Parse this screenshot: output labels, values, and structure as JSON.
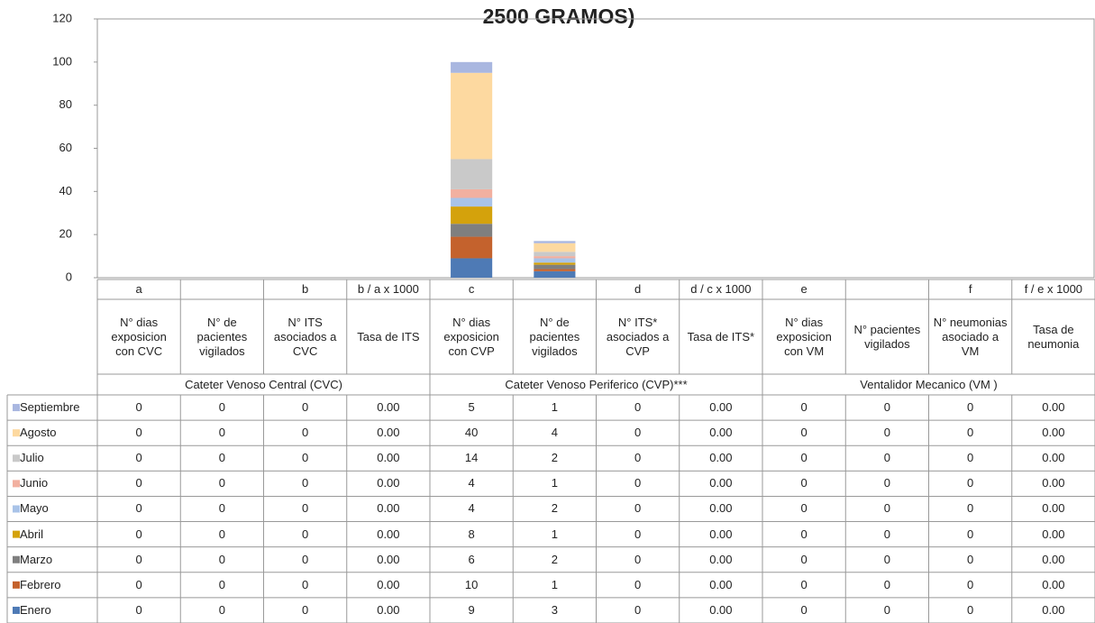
{
  "chart_data": {
    "type": "bar",
    "stacked": true,
    "title": "2500 GRAMOS)",
    "category_codes": [
      "a",
      null,
      "b",
      "b / a x 1000",
      "c",
      null,
      "d",
      "d / c x 1000",
      "e",
      null,
      "f",
      "f / e x 1000"
    ],
    "categories": [
      "N° dias exposicion con CVC",
      "N° de pacientes vigilados",
      "N° ITS asociados a CVC",
      "Tasa de ITS",
      "N° dias exposicion con CVP",
      "N° de pacientes vigilados",
      "N° ITS* asociados a CVP",
      "Tasa de ITS*",
      "N° dias exposicion con VM",
      "N° pacientes vigilados",
      "N° neumonias asociado a VM",
      "Tasa de neumonia"
    ],
    "groups": [
      "Cateter Venoso  Central (CVC)",
      "Cateter Venoso Periferico (CVP)***",
      "Ventalidor Mecanico (VM )"
    ],
    "ylim": [
      0,
      120
    ],
    "yticks": [
      0,
      20,
      40,
      60,
      80,
      100,
      120
    ],
    "grid": false,
    "series": [
      {
        "name": "Enero",
        "color": "#4e7ab5",
        "values": [
          0,
          0,
          0,
          0,
          9,
          3,
          0,
          0,
          0,
          0,
          0,
          0
        ],
        "value_labels": [
          "0",
          "0",
          "0",
          "0.00",
          "9",
          "3",
          "0",
          "0.00",
          "0",
          "0",
          "0",
          "0.00"
        ]
      },
      {
        "name": "Febrero",
        "color": "#c4622d",
        "values": [
          0,
          0,
          0,
          0,
          10,
          1,
          0,
          0,
          0,
          0,
          0,
          0
        ],
        "value_labels": [
          "0",
          "0",
          "0",
          "0.00",
          "10",
          "1",
          "0",
          "0.00",
          "0",
          "0",
          "0",
          "0.00"
        ]
      },
      {
        "name": "Marzo",
        "color": "#7f7f7f",
        "values": [
          0,
          0,
          0,
          0,
          6,
          2,
          0,
          0,
          0,
          0,
          0,
          0
        ],
        "value_labels": [
          "0",
          "0",
          "0",
          "0.00",
          "6",
          "2",
          "0",
          "0.00",
          "0",
          "0",
          "0",
          "0.00"
        ]
      },
      {
        "name": "Abril",
        "color": "#d4a20c",
        "values": [
          0,
          0,
          0,
          0,
          8,
          1,
          0,
          0,
          0,
          0,
          0,
          0
        ],
        "value_labels": [
          "0",
          "0",
          "0",
          "0.00",
          "8",
          "1",
          "0",
          "0.00",
          "0",
          "0",
          "0",
          "0.00"
        ]
      },
      {
        "name": "Mayo",
        "color": "#a9c3e8",
        "values": [
          0,
          0,
          0,
          0,
          4,
          2,
          0,
          0,
          0,
          0,
          0,
          0
        ],
        "value_labels": [
          "0",
          "0",
          "0",
          "0.00",
          "4",
          "2",
          "0",
          "0.00",
          "0",
          "0",
          "0",
          "0.00"
        ]
      },
      {
        "name": "Junio",
        "color": "#f2b0a0",
        "values": [
          0,
          0,
          0,
          0,
          4,
          1,
          0,
          0,
          0,
          0,
          0,
          0
        ],
        "value_labels": [
          "0",
          "0",
          "0",
          "0.00",
          "4",
          "1",
          "0",
          "0.00",
          "0",
          "0",
          "0",
          "0.00"
        ]
      },
      {
        "name": "Julio",
        "color": "#c9c9c9",
        "values": [
          0,
          0,
          0,
          0,
          14,
          2,
          0,
          0,
          0,
          0,
          0,
          0
        ],
        "value_labels": [
          "0",
          "0",
          "0",
          "0.00",
          "14",
          "2",
          "0",
          "0.00",
          "0",
          "0",
          "0",
          "0.00"
        ]
      },
      {
        "name": "Agosto",
        "color": "#fdd9a0",
        "values": [
          0,
          0,
          0,
          0,
          40,
          4,
          0,
          0,
          0,
          0,
          0,
          0
        ],
        "value_labels": [
          "0",
          "0",
          "0",
          "0.00",
          "40",
          "4",
          "0",
          "0.00",
          "0",
          "0",
          "0",
          "0.00"
        ]
      },
      {
        "name": "Septiembre",
        "color": "#a9b7e0",
        "values": [
          0,
          0,
          0,
          0,
          5,
          1,
          0,
          0,
          0,
          0,
          0,
          0
        ],
        "value_labels": [
          "0",
          "0",
          "0",
          "0.00",
          "5",
          "1",
          "0",
          "0.00",
          "0",
          "0",
          "0",
          "0.00"
        ]
      }
    ]
  }
}
